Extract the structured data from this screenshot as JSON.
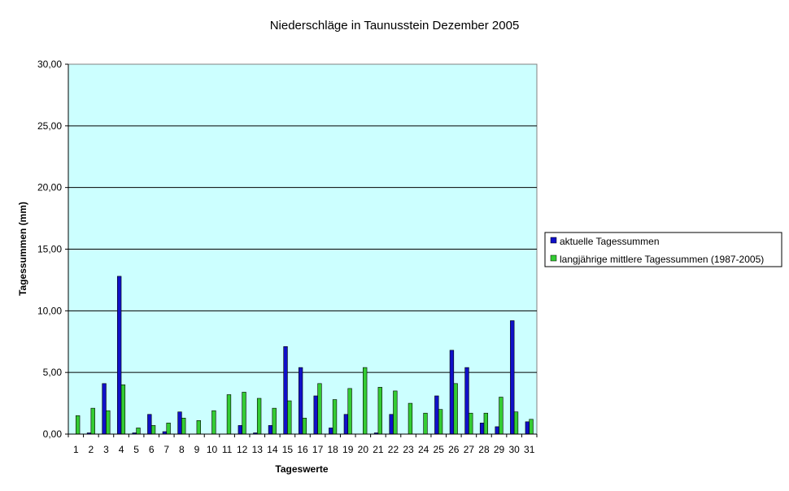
{
  "chart_data": {
    "type": "bar",
    "title": "Niederschläge in Taunusstein  Dezember  2005",
    "xlabel": "Tageswerte",
    "ylabel": "Tagessummen (mm)",
    "ylim": [
      0,
      30
    ],
    "yticks": [
      "0,00",
      "5,00",
      "10,00",
      "15,00",
      "20,00",
      "25,00",
      "30,00"
    ],
    "grid": true,
    "legend_position": "right",
    "categories": [
      "1",
      "2",
      "3",
      "4",
      "5",
      "6",
      "7",
      "8",
      "9",
      "10",
      "11",
      "12",
      "13",
      "14",
      "15",
      "16",
      "17",
      "18",
      "19",
      "20",
      "21",
      "22",
      "23",
      "24",
      "25",
      "26",
      "27",
      "28",
      "29",
      "30",
      "31"
    ],
    "series": [
      {
        "name": "aktuelle Tagessummen",
        "color": "#1010c8",
        "values": [
          0,
          0.1,
          4.1,
          12.8,
          0.1,
          1.6,
          0.2,
          1.8,
          0,
          0,
          0,
          0.7,
          0.1,
          0.7,
          7.1,
          5.4,
          3.1,
          0.5,
          1.6,
          0,
          0.1,
          1.6,
          0,
          0,
          3.1,
          6.8,
          5.4,
          0.9,
          0.6,
          9.2,
          1.0
        ]
      },
      {
        "name": "langjährige mittlere Tagessummen (1987-2005)",
        "color": "#33cc33",
        "values": [
          1.5,
          2.1,
          1.9,
          4.0,
          0.5,
          0.7,
          0.9,
          1.3,
          1.1,
          1.9,
          3.2,
          3.4,
          2.9,
          2.1,
          2.7,
          1.3,
          4.1,
          2.8,
          3.7,
          5.4,
          3.8,
          3.5,
          2.5,
          1.7,
          2.0,
          4.1,
          1.7,
          1.7,
          3.0,
          1.8,
          1.2
        ]
      }
    ]
  }
}
